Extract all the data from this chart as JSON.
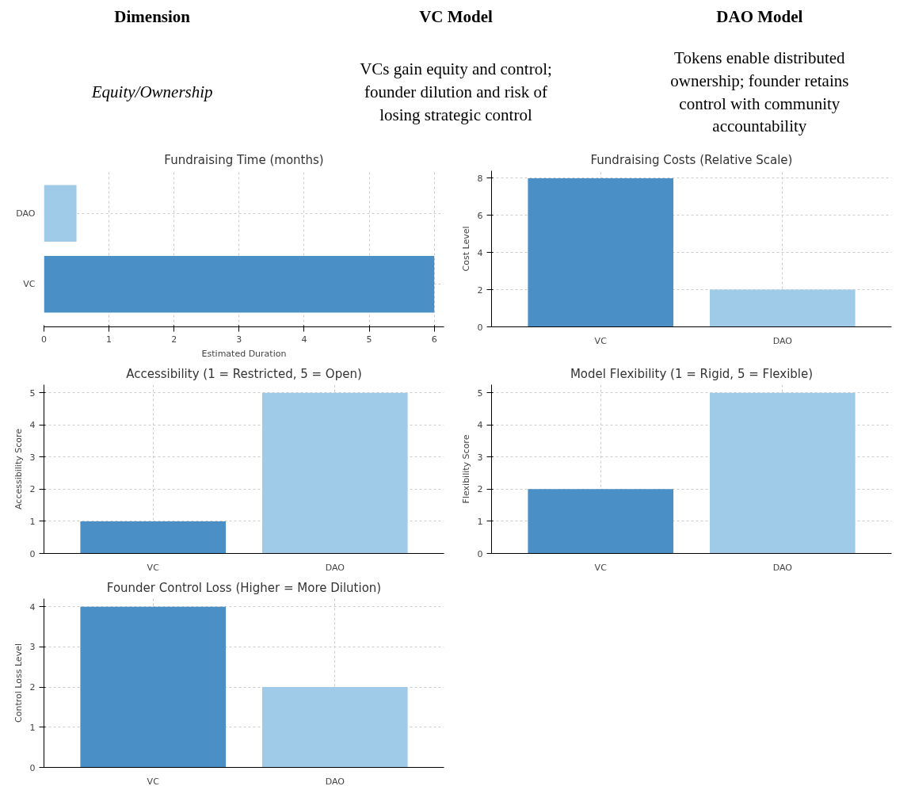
{
  "chart_data": [
    {
      "type": "other",
      "annotations": [
        "Dimension",
        "VC Model",
        "DAO Model",
        "Equity/Ownership",
        "VCs gain equity and control; founder dilution and risk of losing strategic control",
        "Tokens enable distributed ownership; founder retains control with community accountability"
      ]
    },
    {
      "type": "bar",
      "orientation": "horizontal",
      "title": "Fundraising Time (months)",
      "categories": [
        "DAO",
        "VC"
      ],
      "values": [
        0.5,
        6
      ],
      "colors": [
        "#9fcbe9",
        "#4a8fc6"
      ],
      "xlabel": "Estimated Duration",
      "xlim": [
        0,
        6.15
      ],
      "xticks": [
        0,
        1,
        2,
        3,
        4,
        5,
        6
      ],
      "grid": true
    },
    {
      "type": "bar",
      "title": "Fundraising Costs (Relative Scale)",
      "categories": [
        "VC",
        "DAO"
      ],
      "values": [
        8,
        2
      ],
      "colors": [
        "#4a8fc6",
        "#9fcbe9"
      ],
      "ylabel": "Cost Level",
      "ylim": [
        0,
        8.4
      ],
      "yticks": [
        0,
        2,
        4,
        6,
        8
      ],
      "grid": true
    },
    {
      "type": "bar",
      "title": "Accessibility (1 = Restricted, 5 = Open)",
      "categories": [
        "VC",
        "DAO"
      ],
      "values": [
        1,
        5
      ],
      "colors": [
        "#4a8fc6",
        "#9fcbe9"
      ],
      "ylabel": "Accessibility Score",
      "ylim": [
        0,
        5.25
      ],
      "yticks": [
        0,
        1,
        2,
        3,
        4,
        5
      ],
      "grid": true
    },
    {
      "type": "bar",
      "title": "Model Flexibility (1 = Rigid, 5 = Flexible)",
      "categories": [
        "VC",
        "DAO"
      ],
      "values": [
        2,
        5
      ],
      "colors": [
        "#4a8fc6",
        "#9fcbe9"
      ],
      "ylabel": "Flexibility Score",
      "ylim": [
        0,
        5.25
      ],
      "yticks": [
        0,
        1,
        2,
        3,
        4,
        5
      ],
      "grid": true
    },
    {
      "type": "bar",
      "title": "Founder Control Loss (Higher = More Dilution)",
      "categories": [
        "VC",
        "DAO"
      ],
      "values": [
        4,
        2
      ],
      "colors": [
        "#4a8fc6",
        "#9fcbe9"
      ],
      "ylabel": "Control Loss Level",
      "ylim": [
        0,
        4.2
      ],
      "yticks": [
        0,
        1,
        2,
        3,
        4
      ],
      "grid": true
    }
  ]
}
